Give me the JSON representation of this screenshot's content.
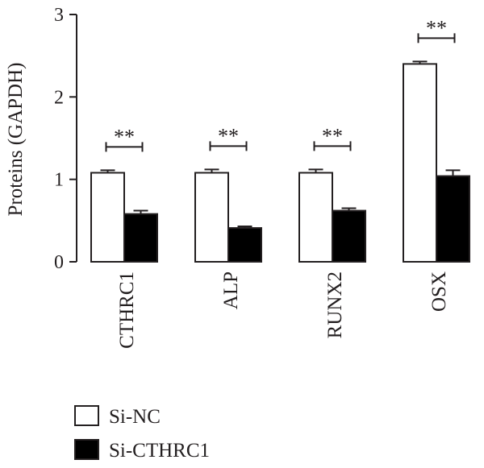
{
  "chart_data": {
    "type": "bar",
    "categories": [
      "CTHRC1",
      "ALP",
      "RUNX2",
      "OSX"
    ],
    "series": [
      {
        "name": "Si-NC",
        "values": [
          1.08,
          1.08,
          1.08,
          2.4
        ],
        "errors": [
          0.03,
          0.04,
          0.04,
          0.03
        ],
        "color": "#ffffff"
      },
      {
        "name": "Si-CTHRC1",
        "values": [
          0.58,
          0.41,
          0.62,
          1.04
        ],
        "errors": [
          0.04,
          0.02,
          0.03,
          0.07
        ],
        "color": "#000000"
      }
    ],
    "significance": [
      "**",
      "**",
      "**",
      "**"
    ],
    "ylabel": "Proteins (GAPDH)",
    "xlabel": "",
    "title": "",
    "ylim": [
      0,
      3
    ],
    "yticks": [
      0,
      1,
      2,
      3
    ],
    "legend_position": "bottom-left",
    "grid": false
  }
}
